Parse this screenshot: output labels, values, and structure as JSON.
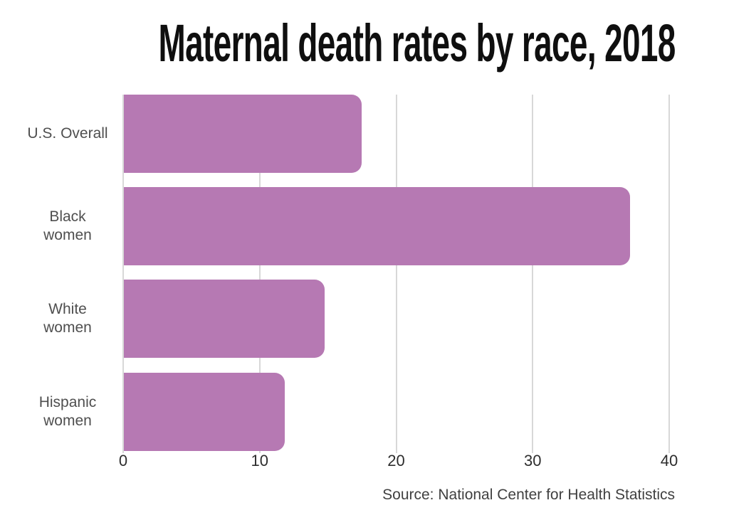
{
  "colors": {
    "background": "#ffffff",
    "bar": "#b679b3",
    "gridline": "#d8d8d8",
    "title_text": "#0f0f0f",
    "category_label": "#4f4f4f",
    "tick_label": "#2d2d2d",
    "source_text": "#404040"
  },
  "chart_data": {
    "type": "bar",
    "orientation": "horizontal",
    "title": "Maternal death rates by race, 2018",
    "categories": [
      "U.S. Overall",
      "Black women",
      "White women",
      "Hispanic women"
    ],
    "category_label_lines": [
      [
        "U.S. Overall"
      ],
      [
        "Black",
        "women"
      ],
      [
        "White",
        "women"
      ],
      [
        "Hispanic",
        "women"
      ]
    ],
    "values": [
      17.4,
      37.1,
      14.7,
      11.8
    ],
    "xlabel": "",
    "ylabel": "",
    "xlim": [
      0,
      40
    ],
    "xticks": [
      0,
      10,
      20,
      30,
      40
    ],
    "grid": true,
    "legend": false,
    "bar_color": "#b679b3",
    "source": "Source: National Center for Health Statistics"
  }
}
